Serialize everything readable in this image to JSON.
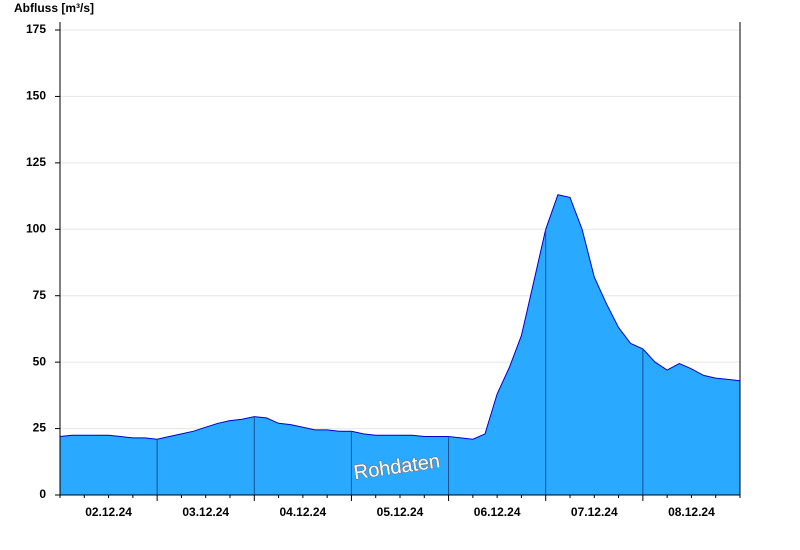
{
  "chart_data": {
    "type": "area",
    "title": "Abfluss [m³/s]",
    "categories": [
      null,
      null,
      null,
      null,
      "02.12.24",
      null,
      null,
      null,
      null,
      null,
      null,
      null,
      "03.12.24",
      null,
      null,
      null,
      null,
      null,
      null,
      null,
      "04.12.24",
      null,
      null,
      null,
      null,
      null,
      null,
      null,
      "05.12.24",
      null,
      null,
      null,
      null,
      null,
      null,
      null,
      "06.12.24",
      null,
      null,
      null,
      null,
      null,
      null,
      null,
      "07.12.24",
      null,
      null,
      null,
      null,
      null,
      null,
      null,
      "08.12.24",
      null,
      null,
      null,
      null
    ],
    "values": [
      22,
      22.5,
      22.5,
      22.5,
      22.5,
      22,
      21.5,
      21.5,
      21,
      22,
      23,
      24,
      25.5,
      27,
      28,
      28.5,
      29.5,
      29,
      27,
      26.5,
      25.5,
      24.5,
      24.5,
      24,
      24,
      23,
      22.5,
      22.5,
      22.5,
      22.5,
      22,
      22,
      22,
      21.5,
      21,
      23,
      38,
      48,
      60,
      80,
      100,
      113,
      112,
      100,
      82,
      72,
      63,
      57,
      55,
      50,
      47,
      49.5,
      47.5,
      45,
      44,
      43.5,
      43
    ],
    "color": "#29a9ff",
    "line_color": "#0000cc",
    "ylim": [
      0,
      175
    ],
    "yticks": [
      0,
      25,
      50,
      75,
      100,
      125,
      150,
      175
    ],
    "grid": true,
    "annotation": "Rohdaten"
  }
}
